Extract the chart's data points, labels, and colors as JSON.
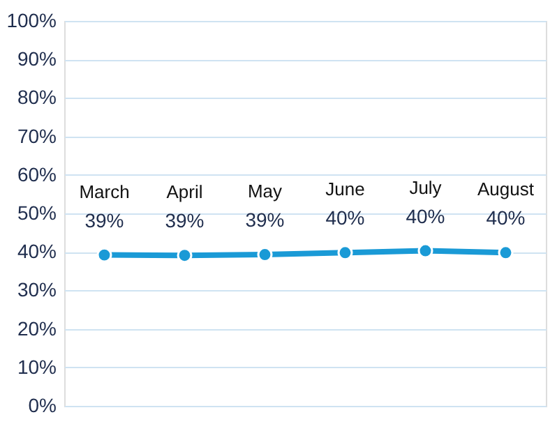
{
  "chart_data": {
    "type": "line",
    "categories": [
      "March",
      "April",
      "May",
      "June",
      "July",
      "August"
    ],
    "series": [
      {
        "color": "#1a9ad6",
        "values": [
          39.2,
          39.1,
          39.3,
          39.8,
          40.3,
          39.8
        ],
        "value_labels": [
          "39%",
          "39%",
          "39%",
          "40%",
          "40%",
          "40%"
        ]
      }
    ],
    "ylim": [
      0,
      100
    ],
    "yticks": [
      {
        "value": 0,
        "label": "0%"
      },
      {
        "value": 10,
        "label": "10%"
      },
      {
        "value": 20,
        "label": "20%"
      },
      {
        "value": 30,
        "label": "30%"
      },
      {
        "value": 40,
        "label": "40%"
      },
      {
        "value": 50,
        "label": "50%"
      },
      {
        "value": 60,
        "label": "60%"
      },
      {
        "value": 70,
        "label": "70%"
      },
      {
        "value": 80,
        "label": "80%"
      },
      {
        "value": 90,
        "label": "90%"
      },
      {
        "value": 100,
        "label": "100%"
      }
    ],
    "grid": "y",
    "marker": "circle",
    "line_style": "solid",
    "tick_labels": "y"
  }
}
